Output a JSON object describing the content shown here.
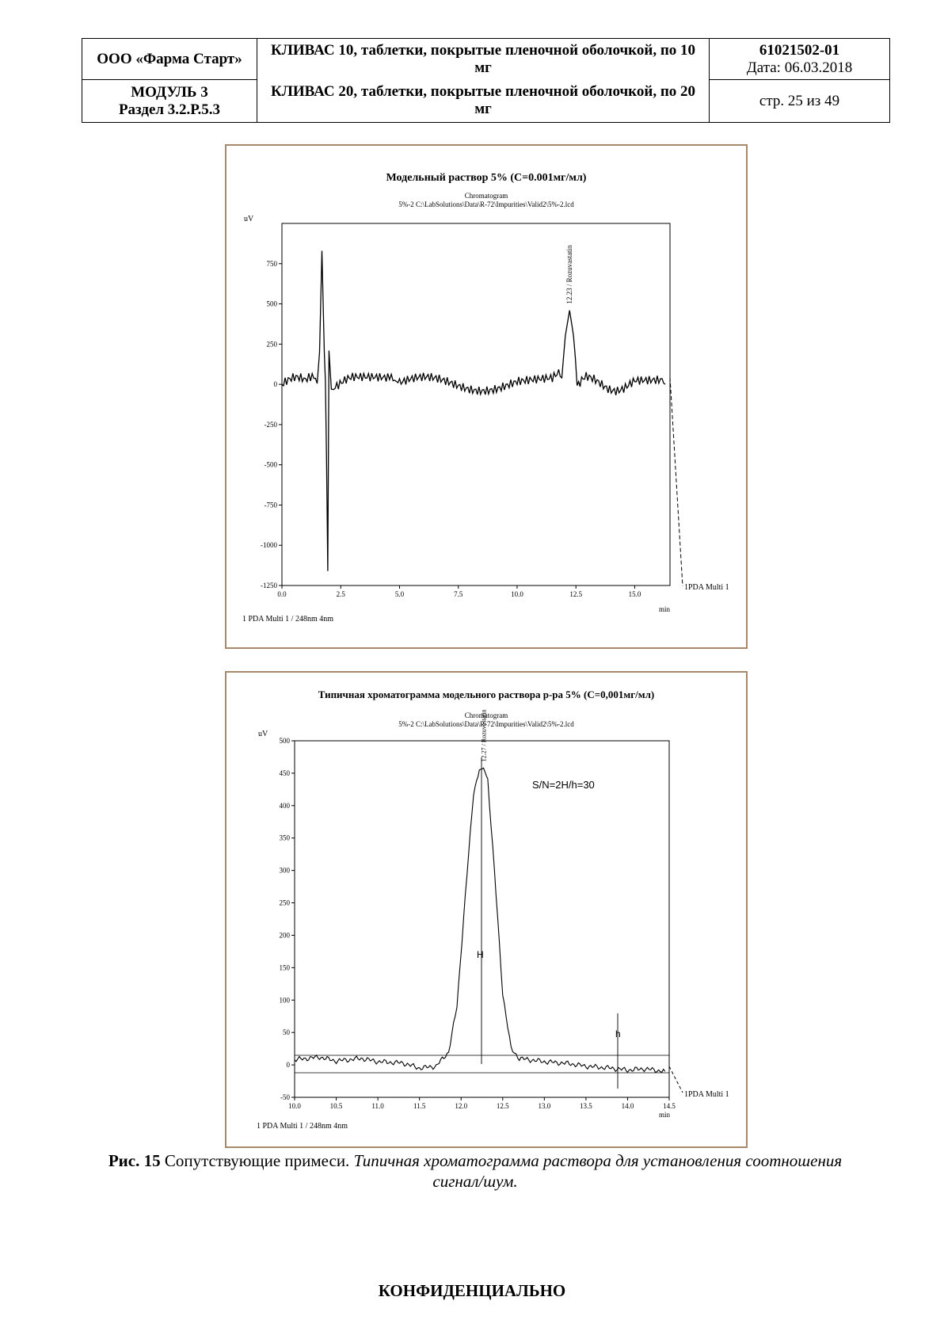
{
  "header": {
    "company": "ООО «Фарма Старт»",
    "module": "МОДУЛЬ 3",
    "section": "Раздел 3.2.Р.5.3",
    "product_line1": "КЛИВАС 10, таблетки, покрытые пленочной оболочкой, по 10 мг",
    "product_line2": "КЛИВАС 20, таблетки, покрытые пленочной оболочкой, по 20 мг",
    "doc_number": "61021502-01",
    "date": "Дата: 06.03.2018",
    "page": "стр. 25 из 49"
  },
  "figures": {
    "fig1": {
      "title": "Модельный раствор 5% (C=0.001мг/мл)",
      "subtitle1": "Chromatogram",
      "subtitle2": "5%-2 C:\\LabSolutions\\Data\\R-72\\Impurities\\Valid2\\5%-2.lcd",
      "ylabel": "uV",
      "xlabel": "min",
      "peak_label": "12.23 / Rozuvastatin",
      "trace_label": "1PDA Multi 1",
      "footer_label": "1  PDA Multi 1 / 248nm 4nm"
    },
    "fig2": {
      "title": "Типичная хроматограмма модельного раствора р-ра 5% (C=0,001мг/мл)",
      "subtitle1": "Chromatogram",
      "subtitle2": "5%-2 C:\\LabSolutions\\Data\\R-72\\Impurities\\Valid2\\5%-2.lcd",
      "ylabel": "uV",
      "xlabel": "min",
      "peak_label": "12.27 / Rozuvastatin",
      "sn_label": "S/N=2H/h=30",
      "H_label": "H",
      "h_label": "h",
      "trace_label": "1PDA Multi 1",
      "footer_label": "1  PDA Multi 1 / 248nm 4nm"
    }
  },
  "caption": {
    "label": "Рис. 15",
    "text": " Сопутствующие примеси. ",
    "italic": "Типичная хроматограмма раствора для установления соотношения сигнал/шум."
  },
  "footer": "КОНФИДЕНЦИАЛЬНО",
  "chart_data": [
    {
      "type": "line",
      "title": "Модельный раствор 5% (C=0.001мг/мл)",
      "xlabel": "min",
      "ylabel": "uV",
      "xlim": [
        0,
        16.5
      ],
      "ylim": [
        -1250,
        1000
      ],
      "xticks": [
        0.0,
        2.5,
        5.0,
        7.5,
        10.0,
        12.5,
        15.0
      ],
      "yticks": [
        750,
        500,
        250,
        0,
        -250,
        -500,
        -750,
        -1000,
        -1250
      ],
      "series": [
        {
          "name": "PDA Multi 1",
          "x": [
            0.0,
            1.0,
            1.5,
            1.6,
            1.7,
            1.8,
            1.85,
            1.9,
            1.95,
            2.0,
            2.1,
            2.2,
            3.0,
            4.5,
            4.8,
            5.0,
            7.5,
            10.0,
            11.5,
            11.9,
            12.05,
            12.23,
            12.4,
            12.55,
            13.0,
            15.0,
            16.3
          ],
          "y": [
            0,
            2,
            5,
            200,
            830,
            200,
            20,
            -500,
            -1160,
            210,
            -30,
            5,
            3,
            2,
            25,
            3,
            2,
            3,
            3,
            40,
            300,
            460,
            300,
            30,
            3,
            2,
            0
          ]
        }
      ],
      "annotations": [
        "12.23 / Rozuvastatin"
      ]
    },
    {
      "type": "line",
      "title": "Типичная хроматограмма модельного раствора р-ра 5% (C=0,001мг/мл)",
      "xlabel": "min",
      "ylabel": "uV",
      "xlim": [
        10.0,
        14.5
      ],
      "ylim": [
        -50,
        500
      ],
      "xticks": [
        10.0,
        10.5,
        11.0,
        11.5,
        12.0,
        12.5,
        13.0,
        13.5,
        14.0,
        14.5
      ],
      "yticks": [
        500,
        450,
        400,
        350,
        300,
        250,
        200,
        150,
        100,
        50,
        0,
        -50
      ],
      "series": [
        {
          "name": "PDA Multi 1",
          "x": [
            10.0,
            10.3,
            10.5,
            10.8,
            11.0,
            11.3,
            11.5,
            11.7,
            11.85,
            11.95,
            12.05,
            12.15,
            12.22,
            12.27,
            12.32,
            12.4,
            12.5,
            12.6,
            12.7,
            13.0,
            13.3,
            13.5,
            13.8,
            14.0,
            14.2,
            14.45
          ],
          "y": [
            8,
            12,
            6,
            10,
            5,
            3,
            -5,
            -2,
            20,
            90,
            260,
            420,
            455,
            458,
            440,
            300,
            110,
            25,
            10,
            5,
            2,
            -2,
            -5,
            -8,
            -6,
            -10
          ]
        }
      ],
      "annotations": [
        "12.27 / Rozuvastatin",
        "S/N=2H/h=30",
        "H",
        "h"
      ]
    }
  ]
}
